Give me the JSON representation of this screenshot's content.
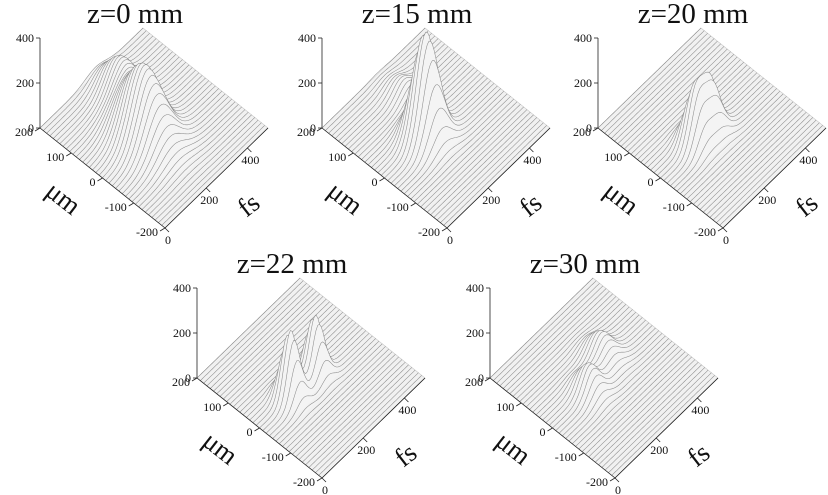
{
  "chart_data": [
    {
      "type": "surface",
      "title": "z=0 mm",
      "xlabel": "μm",
      "ylabel": "fs",
      "xticks": [
        "200",
        "100",
        "0",
        "-100",
        "-200"
      ],
      "yticks": [
        "0",
        "200",
        "400"
      ],
      "zticks": [
        "0",
        "200",
        "400"
      ],
      "xlim": [
        -200,
        200
      ],
      "ylim": [
        0,
        500
      ],
      "zlim": [
        0,
        400
      ],
      "peaks": [
        {
          "x": 0,
          "t": 200,
          "height": 320,
          "width_x": 55,
          "width_t": 60
        },
        {
          "x": 120,
          "t": 270,
          "height": 150,
          "width_x": 45,
          "width_t": 50
        }
      ]
    },
    {
      "type": "surface",
      "title": "z=15 mm",
      "xlabel": "μm",
      "ylabel": "fs",
      "xticks": [
        "200",
        "100",
        "0",
        "-100",
        "-200"
      ],
      "yticks": [
        "0",
        "200",
        "400"
      ],
      "zticks": [
        "0",
        "200",
        "400"
      ],
      "xlim": [
        -200,
        200
      ],
      "ylim": [
        0,
        500
      ],
      "zlim": [
        0,
        400
      ],
      "peaks": [
        {
          "x": 0,
          "t": 200,
          "height": 470,
          "width_x": 30,
          "width_t": 45
        },
        {
          "x": 110,
          "t": 270,
          "height": 70,
          "width_x": 40,
          "width_t": 40
        }
      ]
    },
    {
      "type": "surface",
      "title": "z=20 mm",
      "xlabel": "μm",
      "ylabel": "fs",
      "xticks": [
        "200",
        "100",
        "0",
        "-100",
        "-200"
      ],
      "yticks": [
        "0",
        "200",
        "400"
      ],
      "zticks": [
        "0",
        "200",
        "400"
      ],
      "xlim": [
        -200,
        200
      ],
      "ylim": [
        0,
        500
      ],
      "zlim": [
        0,
        400
      ],
      "peaks": [
        {
          "x": 0,
          "t": 170,
          "height": 240,
          "width_x": 25,
          "width_t": 35
        },
        {
          "x": 0,
          "t": 240,
          "height": 220,
          "width_x": 25,
          "width_t": 35
        }
      ]
    },
    {
      "type": "surface",
      "title": "z=22 mm",
      "xlabel": "μm",
      "ylabel": "fs",
      "xticks": [
        "200",
        "100",
        "0",
        "-100",
        "-200"
      ],
      "yticks": [
        "0",
        "200",
        "400"
      ],
      "zticks": [
        "0",
        "200",
        "400"
      ],
      "xlim": [
        -200,
        200
      ],
      "ylim": [
        0,
        500
      ],
      "zlim": [
        0,
        400
      ],
      "peaks": [
        {
          "x": 0,
          "t": 150,
          "height": 300,
          "width_x": 22,
          "width_t": 30
        },
        {
          "x": 0,
          "t": 270,
          "height": 260,
          "width_x": 22,
          "width_t": 30
        }
      ]
    },
    {
      "type": "surface",
      "title": "z=30 mm",
      "xlabel": "μm",
      "ylabel": "fs",
      "xticks": [
        "200",
        "100",
        "0",
        "-100",
        "-200"
      ],
      "yticks": [
        "0",
        "200",
        "400"
      ],
      "zticks": [
        "0",
        "200",
        "400"
      ],
      "xlim": [
        -200,
        200
      ],
      "ylim": [
        0,
        500
      ],
      "zlim": [
        0,
        400
      ],
      "peaks": [
        {
          "x": 0,
          "t": 180,
          "height": 120,
          "width_x": 30,
          "width_t": 35
        },
        {
          "x": 40,
          "t": 300,
          "height": 110,
          "width_x": 35,
          "width_t": 40
        }
      ]
    }
  ]
}
